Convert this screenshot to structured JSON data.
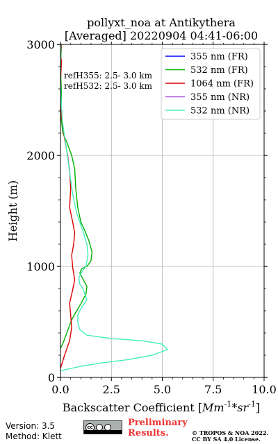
{
  "chart_data": {
    "type": "line",
    "title": "pollyxt_noa at Antikythera",
    "subtitle": "[Averaged] 20220904 04:41-06:00",
    "xlabel": "Backscatter Coefficient [",
    "xlabel_math": "Mm",
    "xlabel_sup1": "-1",
    "xlabel_mid": "*sr",
    "xlabel_sup2": "-1",
    "xlabel_end": "]",
    "ylabel": "Height (m)",
    "xlim": [
      0,
      10
    ],
    "ylim": [
      0,
      3000
    ],
    "xticks": [
      0,
      2.5,
      5,
      7.5,
      10
    ],
    "xtick_labels": [
      "0.0",
      "2.5",
      "5.0",
      "7.5",
      "10.0"
    ],
    "yticks": [
      0,
      1000,
      2000,
      3000
    ],
    "ytick_labels": [
      "0",
      "1000",
      "2000",
      "3000"
    ],
    "grid": true,
    "legend_position": "top-right",
    "annotations": [
      "refH355:  2.5- 3.0 km",
      "refH532:  2.5- 3.0 km"
    ],
    "series": [
      {
        "name": "355 nm (FR)",
        "color": "#0000ff",
        "x": [],
        "y": []
      },
      {
        "name": "532 nm (FR)",
        "color": "#00b000",
        "x": [
          0.0,
          0.15,
          0.35,
          0.55,
          0.8,
          1.05,
          1.25,
          1.3,
          1.15,
          0.95,
          1.05,
          1.3,
          1.5,
          1.55,
          1.4,
          1.2,
          1.0,
          0.85,
          0.75,
          0.7,
          0.55,
          0.35,
          0.12,
          0.02,
          0.05,
          0.0,
          0.05
        ],
        "y": [
          260,
          320,
          420,
          520,
          600,
          680,
          750,
          820,
          870,
          940,
          980,
          1000,
          1050,
          1130,
          1230,
          1320,
          1400,
          1530,
          1700,
          1880,
          2000,
          2100,
          2200,
          2350,
          2550,
          2800,
          3000
        ]
      },
      {
        "name": "1064 nm (FR)",
        "color": "#dd0000",
        "x": [
          0.0,
          0.2,
          0.45,
          0.55,
          0.5,
          0.45,
          0.6,
          0.7,
          0.6,
          0.55,
          0.65,
          0.7,
          0.6,
          0.45,
          0.5,
          0.45,
          0.35,
          0.2,
          0.05,
          0.02,
          0.0,
          0.05,
          0.0,
          0.05
        ],
        "y": [
          80,
          200,
          330,
          450,
          560,
          670,
          790,
          880,
          990,
          1100,
          1200,
          1300,
          1400,
          1530,
          1700,
          1860,
          2000,
          2150,
          2350,
          2500,
          2650,
          2850,
          2900,
          3000
        ]
      },
      {
        "name": "355 nm (NR)",
        "color": "#aa55dd",
        "x": [],
        "y": []
      },
      {
        "name": "532 nm (NR)",
        "color": "#44eebb",
        "x": [
          0.0,
          1.0,
          2.0,
          3.3,
          4.5,
          5.25,
          5.0,
          4.0,
          2.5,
          1.3,
          0.95,
          0.85,
          0.85,
          1.0,
          1.3,
          1.1,
          0.95,
          0.9,
          1.05,
          1.25,
          1.35,
          1.3,
          1.1,
          0.8,
          0.6,
          0.45,
          0.3,
          0.1,
          0.03,
          0.0,
          0.02
        ],
        "y": [
          60,
          100,
          130,
          160,
          200,
          250,
          300,
          330,
          350,
          380,
          430,
          500,
          560,
          620,
          700,
          800,
          840,
          900,
          950,
          1000,
          1100,
          1200,
          1320,
          1480,
          1650,
          1850,
          2050,
          2300,
          2500,
          2700,
          3000
        ]
      }
    ]
  },
  "footer": {
    "version": "Version: 3.5",
    "method": "Method: Klett",
    "badge_cc": "cc",
    "badge_by": "BY",
    "badge_sa": "SA",
    "prelim_line1": "Preliminary",
    "prelim_line2": "Results.",
    "copyright_line1": "© TROPOS & NOA 2022.",
    "copyright_line2": "CC BY SA 4.0 License."
  }
}
